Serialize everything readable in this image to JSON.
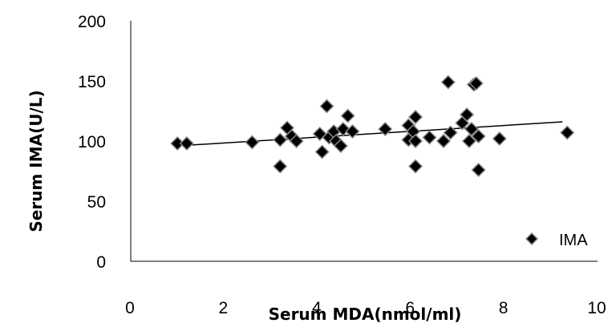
{
  "chart_data": {
    "type": "scatter",
    "xlabel": "Serum MDA(nmol/ml)",
    "ylabel": "Serum  IMA(U/L)",
    "xlim": [
      0,
      10
    ],
    "ylim": [
      0,
      200
    ],
    "x_ticks": [
      0,
      2,
      4,
      6,
      8,
      10
    ],
    "y_ticks": [
      0,
      50,
      100,
      150,
      200
    ],
    "grid": false,
    "legend": {
      "position": "bottom-right",
      "entries": [
        "IMA"
      ]
    },
    "series": [
      {
        "name": "IMA",
        "marker": "diamond",
        "color": "#000000",
        "points": [
          [
            1.0,
            98
          ],
          [
            1.2,
            98
          ],
          [
            2.6,
            99
          ],
          [
            3.2,
            101
          ],
          [
            3.2,
            79
          ],
          [
            3.35,
            111
          ],
          [
            3.45,
            104
          ],
          [
            3.55,
            100
          ],
          [
            4.05,
            106
          ],
          [
            4.1,
            91
          ],
          [
            4.2,
            129
          ],
          [
            4.25,
            103
          ],
          [
            4.35,
            108
          ],
          [
            4.4,
            100
          ],
          [
            4.5,
            96
          ],
          [
            4.55,
            110
          ],
          [
            4.65,
            121
          ],
          [
            4.75,
            108
          ],
          [
            5.45,
            110
          ],
          [
            5.95,
            113
          ],
          [
            5.95,
            101
          ],
          [
            6.05,
            108
          ],
          [
            6.1,
            100
          ],
          [
            6.1,
            120
          ],
          [
            6.1,
            79
          ],
          [
            6.4,
            103
          ],
          [
            6.7,
            100
          ],
          [
            6.85,
            107
          ],
          [
            6.8,
            149
          ],
          [
            7.1,
            115
          ],
          [
            7.2,
            122
          ],
          [
            7.25,
            100
          ],
          [
            7.3,
            110
          ],
          [
            7.35,
            147
          ],
          [
            7.4,
            148
          ],
          [
            7.45,
            104
          ],
          [
            7.45,
            76
          ],
          [
            7.9,
            102
          ],
          [
            9.35,
            107
          ]
        ]
      }
    ],
    "trendline": {
      "type": "linear",
      "x": [
        1.0,
        9.25
      ],
      "y": [
        96,
        116
      ]
    }
  }
}
